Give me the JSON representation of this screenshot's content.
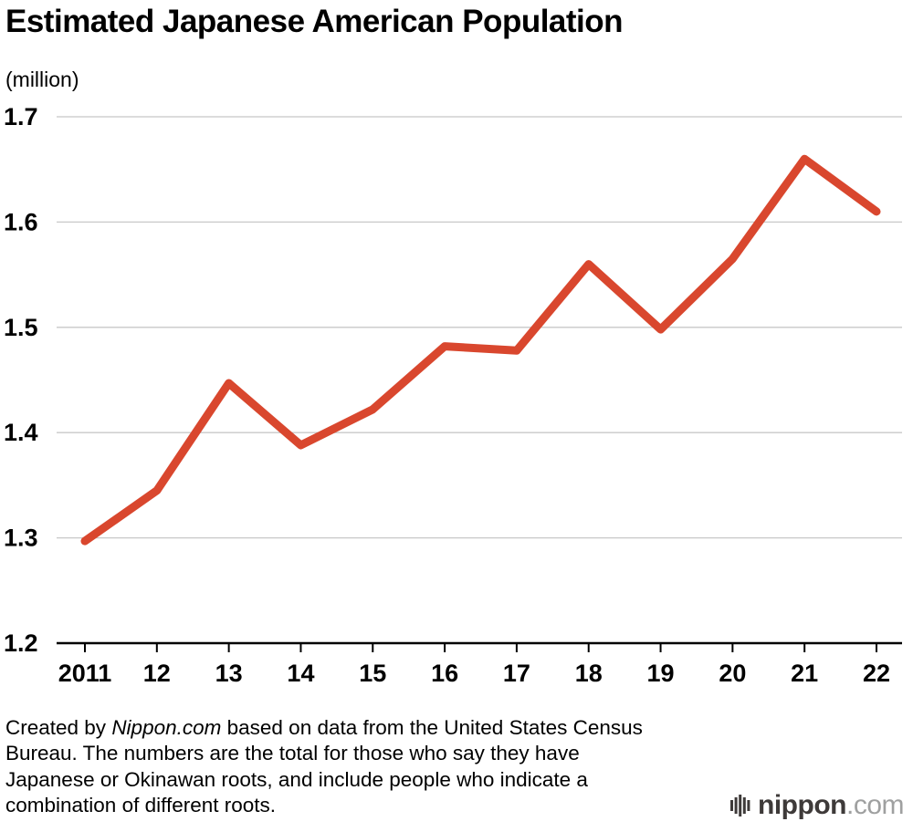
{
  "chart_data": {
    "type": "line",
    "title": "Estimated Japanese American Population",
    "ylabel": "(million)",
    "xlabel": "",
    "categories": [
      "2011",
      "12",
      "13",
      "14",
      "15",
      "16",
      "17",
      "18",
      "19",
      "20",
      "21",
      "22"
    ],
    "values": [
      1.297,
      1.345,
      1.447,
      1.388,
      1.422,
      1.482,
      1.478,
      1.56,
      1.498,
      1.565,
      1.66,
      1.61
    ],
    "ylim": [
      1.2,
      1.7
    ],
    "ytick_step": 0.1,
    "ytick_labels": [
      "1.2",
      "1.3",
      "1.4",
      "1.5",
      "1.6",
      "1.7"
    ],
    "grid": true,
    "legend": "none",
    "line_color": "#d9472e",
    "grid_color": "#c8c8c8",
    "axis_color": "#000000"
  },
  "footer": {
    "part1": "Created by ",
    "italic": "Nippon.com",
    "part2": " based on data from the United States Census Bureau. The numbers are the total for those who say they have Japanese or Okinawan roots, and include people who indicate a combination of different roots."
  },
  "logo": {
    "name": "nippon",
    "domain": ".com",
    "icon": "sound-bars-icon",
    "icon_color": "#3e3a39",
    "name_color": "#3e3a39",
    "domain_color": "#9fa0a0"
  }
}
